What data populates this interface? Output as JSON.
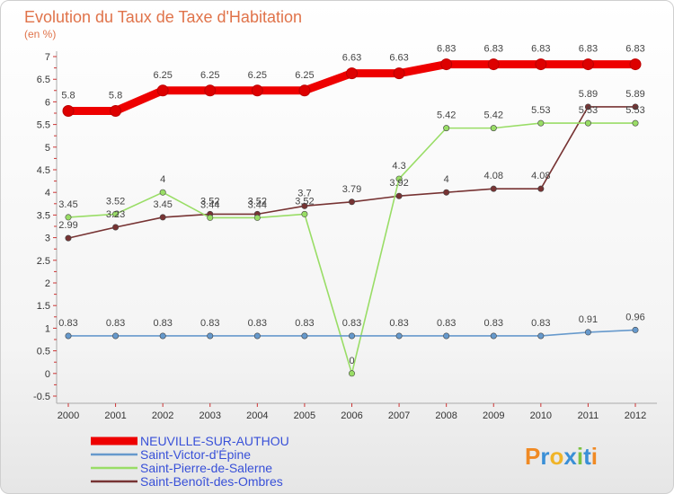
{
  "chart_data": {
    "type": "line",
    "title": "Evolution du Taux de Taxe d'Habitation",
    "ylabel": "(en %)",
    "xlabel": "",
    "x": [
      "2000",
      "2001",
      "2002",
      "2003",
      "2004",
      "2005",
      "2006",
      "2007",
      "2008",
      "2009",
      "2010",
      "2011",
      "2012"
    ],
    "ylim": [
      -0.5,
      7
    ],
    "yticks": [
      "-0.5",
      "0",
      "0.5",
      "1",
      "1.5",
      "2",
      "2.5",
      "3",
      "3.5",
      "4",
      "4.5",
      "5",
      "5.5",
      "6",
      "6.5",
      "7"
    ],
    "grid": false,
    "legend_position": "bottom-left",
    "series": [
      {
        "name": "NEUVILLE-SUR-AUTHOU",
        "color": "#ee0000",
        "values": [
          5.8,
          5.8,
          6.25,
          6.25,
          6.25,
          6.25,
          6.63,
          6.63,
          6.83,
          6.83,
          6.83,
          6.83,
          6.83
        ],
        "labels": [
          "5.8",
          "5.8",
          "6.25",
          "6.25",
          "6.25",
          "6.25",
          "6.63",
          "6.63",
          "6.83",
          "6.83",
          "6.83",
          "6.83",
          "6.83"
        ]
      },
      {
        "name": "Saint-Victor-d'Épine",
        "color": "#6699cc",
        "values": [
          0.83,
          0.83,
          0.83,
          0.83,
          0.83,
          0.83,
          0.83,
          0.83,
          0.83,
          0.83,
          0.83,
          0.91,
          0.96
        ],
        "labels": [
          "0.83",
          "0.83",
          "0.83",
          "0.83",
          "0.83",
          "0.83",
          "0.83",
          "0.83",
          "0.83",
          "0.83",
          "0.83",
          "0.91",
          "0.96"
        ]
      },
      {
        "name": "Saint-Pierre-de-Salerne",
        "color": "#99dd66",
        "values": [
          3.45,
          3.52,
          4,
          3.44,
          3.44,
          3.52,
          0,
          4.3,
          5.42,
          5.42,
          5.53,
          5.53,
          5.53
        ],
        "labels": [
          "3.45",
          "3.52",
          "4",
          "3.44",
          "3.44",
          "3.52",
          "0",
          "4.3",
          "5.42",
          "5.42",
          "5.53",
          "5.53",
          "5.53"
        ]
      },
      {
        "name": "Saint-Benoît-des-Ombres",
        "color": "#773333",
        "values": [
          2.99,
          3.23,
          3.45,
          3.52,
          3.52,
          3.7,
          3.79,
          3.92,
          4,
          4.08,
          4.08,
          5.89,
          5.89
        ],
        "labels": [
          "2.99",
          "3.23",
          "3.45",
          "3.52",
          "3.52",
          "3.7",
          "3.79",
          "3.92",
          "4",
          "4.08",
          "4.08",
          "5.89",
          "5.89"
        ]
      }
    ]
  },
  "logo": {
    "text": "Proxiti",
    "letters": [
      "P",
      "r",
      "o",
      "x",
      "i",
      "t",
      "i"
    ],
    "colors": [
      "#f08a24",
      "#3a8fd6",
      "#f0b428",
      "#3a8fd6",
      "#7cc242",
      "#3a8fd6",
      "#f08a24"
    ]
  }
}
